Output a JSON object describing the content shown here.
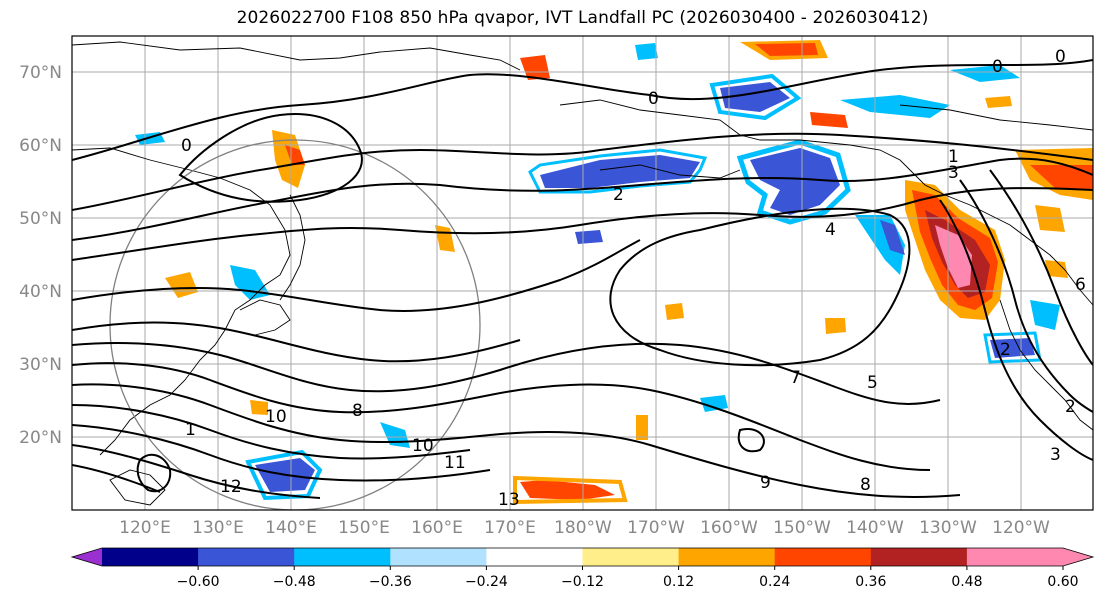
{
  "title": "2026022700 F108 850 hPa qvapor, IVT Landfall PC (2026030400 - 2026030412)",
  "map": {
    "lat_labels": [
      "70°N",
      "60°N",
      "50°N",
      "40°N",
      "30°N",
      "20°N"
    ],
    "lon_labels": [
      "120°E",
      "130°E",
      "140°E",
      "150°E",
      "160°E",
      "170°E",
      "180°W",
      "170°W",
      "160°W",
      "150°W",
      "140°W",
      "130°W",
      "120°W"
    ],
    "contour_labels": [
      "0",
      "0",
      "0",
      "1",
      "2",
      "3",
      "4",
      "5",
      "6",
      "7",
      "8",
      "8",
      "9",
      "10",
      "10",
      "11",
      "12",
      "13",
      "2",
      "3",
      "2",
      "1",
      "0"
    ]
  },
  "colorbar": {
    "ticks": [
      "−0.60",
      "−0.48",
      "−0.36",
      "−0.24",
      "−0.12",
      "0.12",
      "0.24",
      "0.36",
      "0.48",
      "0.60"
    ],
    "colors": [
      "#9b30d0",
      "#00008b",
      "#3a55d6",
      "#00bfff",
      "#b0e2ff",
      "#ffffff",
      "#ffee8a",
      "#ffa500",
      "#ff4500",
      "#b22222",
      "#ff88b0",
      "#ff88b0"
    ]
  }
}
